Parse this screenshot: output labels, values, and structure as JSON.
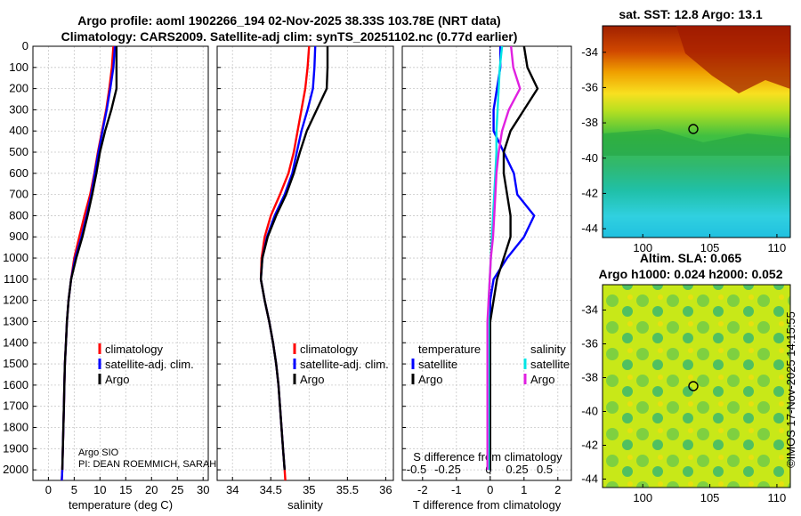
{
  "header": {
    "line1": "Argo profile: aoml 1902266_194 02-Nov-2025 38.33S 103.78E (NRT data)",
    "line2": "Climatology: CARS2009. Satellite-adj clim: synTS_20251102.nc (0.77d earlier)"
  },
  "map_sst": {
    "title": "sat. SST: 12.8 Argo: 13.1"
  },
  "map_sla": {
    "title1": "Altim. SLA: 0.065",
    "title2": "Argo h1000: 0.024 h2000: 0.052"
  },
  "credit": "©IMOS 17-Nov-2025 14:15:55",
  "info": {
    "line1": "Argo SIO",
    "line2": "PI: DEAN ROEMMICH, SARAH"
  },
  "legend": {
    "climatology": "climatology",
    "satellite_adj": "satellite-adj. clim.",
    "argo": "Argo",
    "temperature_head": "temperature",
    "salinity_head": "salinity",
    "satellite": "satellite",
    "argo2": "Argo"
  },
  "colors": {
    "climatology": "#ff0000",
    "satellite": "#0000ff",
    "argo": "#000000",
    "sal_sat": "#00e5e5",
    "sal_argo": "#e020e0"
  },
  "chart_data": [
    {
      "type": "line",
      "panel": "temperature",
      "xlabel": "temperature (deg C)",
      "ylabel": "",
      "xlim": [
        -3,
        31
      ],
      "ylim": [
        2050,
        0
      ],
      "xticks": [
        "0",
        "5",
        "10",
        "15",
        "20",
        "25",
        "30"
      ],
      "yticks": [
        "0",
        "100",
        "200",
        "300",
        "400",
        "500",
        "600",
        "700",
        "800",
        "900",
        "1000",
        "1100",
        "1200",
        "1300",
        "1400",
        "1500",
        "1600",
        "1700",
        "1800",
        "1900",
        "2000"
      ],
      "series": [
        {
          "name": "climatology",
          "depth": [
            0,
            100,
            200,
            300,
            400,
            500,
            600,
            700,
            800,
            900,
            1000,
            1100,
            1200,
            1300,
            1400,
            1500,
            1600,
            1700,
            1800,
            1900,
            2000,
            2050
          ],
          "values": [
            12.6,
            12.3,
            11.8,
            11.2,
            10.4,
            9.6,
            8.9,
            8.1,
            7.0,
            6.0,
            5.0,
            4.4,
            3.9,
            3.6,
            3.4,
            3.2,
            3.1,
            3.0,
            2.9,
            2.8,
            2.7,
            2.6
          ]
        },
        {
          "name": "satellite-adj. clim.",
          "depth": [
            0,
            100,
            200,
            300,
            400,
            500,
            600,
            700,
            800,
            900,
            1000,
            1100,
            1200,
            1300,
            1400,
            1500,
            1600,
            1700,
            1800,
            1900,
            2000,
            2050
          ],
          "values": [
            12.9,
            12.6,
            12.0,
            11.3,
            10.5,
            9.7,
            9.0,
            8.3,
            7.4,
            6.4,
            5.2,
            4.4,
            3.9,
            3.6,
            3.4,
            3.2,
            3.1,
            3.0,
            2.9,
            2.8,
            2.7,
            2.6
          ]
        },
        {
          "name": "Argo",
          "depth": [
            0,
            100,
            200,
            300,
            400,
            500,
            600,
            700,
            800,
            900,
            1000,
            1100,
            1200,
            1300,
            1400,
            1500,
            1600,
            1700,
            1800,
            1900,
            2000
          ],
          "values": [
            13.2,
            13.2,
            13.2,
            12.2,
            11.0,
            10.0,
            9.3,
            8.5,
            7.6,
            6.6,
            5.4,
            4.4,
            3.9,
            3.6,
            3.4,
            3.2,
            3.1,
            3.0,
            2.9,
            2.8,
            2.7
          ]
        }
      ]
    },
    {
      "type": "line",
      "panel": "salinity",
      "xlabel": "salinity",
      "ylabel": "",
      "xlim": [
        33.8,
        36.1
      ],
      "ylim": [
        2050,
        0
      ],
      "xticks": [
        "34",
        "34.5",
        "35",
        "35.5",
        "36"
      ],
      "series": [
        {
          "name": "climatology",
          "depth": [
            0,
            100,
            200,
            300,
            400,
            500,
            600,
            700,
            800,
            900,
            1000,
            1100,
            1200,
            1300,
            1400,
            1500,
            1600,
            1700,
            1800,
            1900,
            2000,
            2050
          ],
          "values": [
            35.0,
            34.98,
            34.95,
            34.9,
            34.85,
            34.8,
            34.73,
            34.62,
            34.5,
            34.42,
            34.38,
            34.37,
            34.42,
            34.48,
            34.53,
            34.57,
            34.6,
            34.62,
            34.64,
            34.66,
            34.68,
            34.69
          ]
        },
        {
          "name": "satellite-adj. clim.",
          "depth": [
            0,
            100,
            200,
            300,
            400,
            500,
            600,
            700,
            800,
            900,
            1000,
            1100,
            1200,
            1300,
            1400,
            1500,
            1600,
            1700,
            1800,
            1900,
            2000
          ],
          "values": [
            35.08,
            35.07,
            35.05,
            34.98,
            34.9,
            34.84,
            34.78,
            34.68,
            34.55,
            34.45,
            34.39,
            34.37,
            34.42,
            34.48,
            34.53,
            34.57,
            34.6,
            34.62,
            34.64,
            34.66,
            34.68
          ]
        },
        {
          "name": "Argo",
          "depth": [
            0,
            100,
            200,
            300,
            400,
            500,
            600,
            700,
            800,
            900,
            1000,
            1100,
            1200,
            1300,
            1400,
            1500,
            1600,
            1700,
            1800,
            1900,
            2000
          ],
          "values": [
            35.24,
            35.24,
            35.23,
            35.1,
            34.97,
            34.88,
            34.8,
            34.7,
            34.57,
            34.46,
            34.39,
            34.37,
            34.42,
            34.48,
            34.53,
            34.57,
            34.6,
            34.62,
            34.64,
            34.66,
            34.68
          ]
        }
      ]
    },
    {
      "type": "line",
      "panel": "difference",
      "xlabel": "T difference from climatology",
      "xlabel_top": "S difference from climatology",
      "xlim": [
        -2.6,
        2.4
      ],
      "ylim": [
        2050,
        0
      ],
      "xticks": [
        "-2",
        "-1",
        "0",
        "1",
        "2"
      ],
      "xticks_top": [
        "-0.5",
        "-0.25",
        "0",
        "0.25",
        "0.5"
      ],
      "series": [
        {
          "name": "temperature satellite",
          "depth": [
            0,
            100,
            200,
            300,
            400,
            500,
            600,
            700,
            800,
            900,
            1000,
            1100,
            1200,
            1300,
            1400,
            1500,
            1600,
            1700,
            1800,
            1900,
            2000
          ],
          "values": [
            0.3,
            0.3,
            0.2,
            0.1,
            0.1,
            0.4,
            0.7,
            0.8,
            1.3,
            1.0,
            0.5,
            0.1,
            0.0,
            0.0,
            0.0,
            0.0,
            0.0,
            0.0,
            0.0,
            0.0,
            0.0
          ]
        },
        {
          "name": "temperature Argo",
          "depth": [
            0,
            100,
            200,
            300,
            400,
            500,
            600,
            700,
            800,
            900,
            1000,
            1100,
            1200,
            1300,
            1400,
            1500,
            1600,
            1700,
            1800,
            1900,
            2000
          ],
          "values": [
            1.0,
            1.1,
            1.4,
            1.0,
            0.6,
            0.4,
            0.4,
            0.5,
            0.6,
            0.6,
            0.4,
            0.2,
            0.1,
            0.0,
            0.0,
            0.0,
            0.0,
            0.0,
            0.0,
            0.0,
            0.0
          ]
        },
        {
          "name": "salinity satellite",
          "depth": [
            0,
            100,
            200,
            300,
            400,
            500,
            600,
            700,
            800,
            900,
            1000,
            1100,
            1200,
            1300,
            1400,
            1500,
            1600,
            1700,
            1800,
            1900,
            2000
          ],
          "values": [
            0.12,
            0.1,
            0.09,
            0.08,
            0.07,
            0.07,
            0.06,
            0.05,
            0.04,
            0.03,
            0.02,
            0.01,
            0.0,
            0.0,
            0.0,
            0.0,
            0.0,
            0.0,
            0.0,
            0.0,
            0.0
          ]
        },
        {
          "name": "salinity Argo",
          "depth": [
            0,
            100,
            200,
            300,
            400,
            500,
            600,
            700,
            800,
            900,
            1000,
            1100,
            1200,
            1300,
            1400,
            1500,
            1600,
            1700,
            1800,
            1900,
            2000
          ],
          "values": [
            0.2,
            0.22,
            0.28,
            0.18,
            0.12,
            0.09,
            0.07,
            0.06,
            0.05,
            0.04,
            0.02,
            0.01,
            0.0,
            -0.01,
            -0.01,
            -0.01,
            -0.01,
            -0.01,
            -0.01,
            -0.01,
            -0.01
          ]
        }
      ]
    },
    {
      "type": "heatmap",
      "panel": "sst_map",
      "xticks": [
        "100",
        "105",
        "110"
      ],
      "yticks": [
        "-34",
        "-36",
        "-38",
        "-40",
        "-42",
        "-44"
      ],
      "xlim": [
        97,
        111
      ],
      "ylim": [
        -44.5,
        -32.5
      ],
      "argo_position": {
        "lon": 103.78,
        "lat": -38.33
      }
    },
    {
      "type": "heatmap",
      "panel": "sla_map",
      "xticks": [
        "100",
        "105",
        "110"
      ],
      "yticks": [
        "-34",
        "-36",
        "-38",
        "-40",
        "-42",
        "-44"
      ],
      "xlim": [
        97,
        111
      ],
      "ylim": [
        -44.5,
        -32.5
      ],
      "argo_position": {
        "lon": 103.78,
        "lat": -38.33
      }
    }
  ]
}
